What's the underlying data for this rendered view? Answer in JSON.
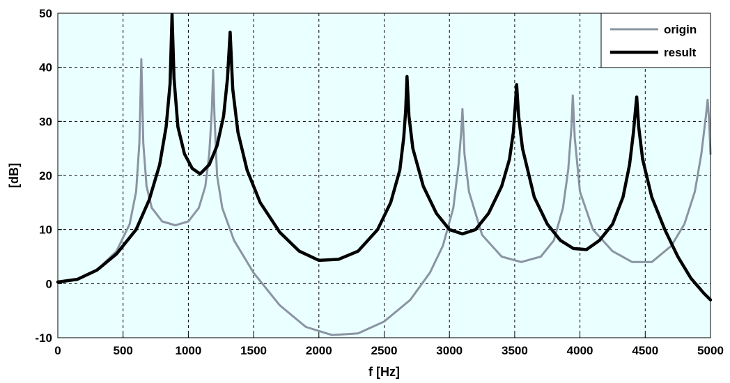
{
  "chart_data": {
    "type": "line",
    "xlabel": "f [Hz]",
    "ylabel": "[dB]",
    "xlim": [
      0,
      5000
    ],
    "ylim": [
      -10,
      50
    ],
    "xticks": [
      "0",
      "500",
      "1000",
      "1500",
      "2000",
      "2500",
      "3000",
      "3500",
      "4000",
      "4500",
      "5000"
    ],
    "yticks": [
      "-10",
      "0",
      "10",
      "20",
      "30",
      "40",
      "50"
    ],
    "grid": true,
    "legend_position": "top-right",
    "background_color": "#eaffff",
    "series": [
      {
        "name": "origin",
        "color": "#8a94a2",
        "points": [
          [
            0,
            0.3
          ],
          [
            150,
            0.8
          ],
          [
            300,
            2.5
          ],
          [
            450,
            6
          ],
          [
            550,
            11
          ],
          [
            600,
            17
          ],
          [
            625,
            26
          ],
          [
            640,
            41.5
          ],
          [
            655,
            26
          ],
          [
            680,
            18
          ],
          [
            720,
            14
          ],
          [
            800,
            11.5
          ],
          [
            900,
            10.8
          ],
          [
            1000,
            11.5
          ],
          [
            1080,
            14
          ],
          [
            1130,
            18
          ],
          [
            1160,
            24
          ],
          [
            1180,
            32
          ],
          [
            1190,
            39.5
          ],
          [
            1200,
            31
          ],
          [
            1220,
            20
          ],
          [
            1260,
            14
          ],
          [
            1350,
            8
          ],
          [
            1500,
            2
          ],
          [
            1700,
            -4
          ],
          [
            1900,
            -8
          ],
          [
            2100,
            -9.5
          ],
          [
            2300,
            -9.2
          ],
          [
            2500,
            -7
          ],
          [
            2700,
            -3
          ],
          [
            2850,
            2
          ],
          [
            2950,
            7
          ],
          [
            3030,
            14
          ],
          [
            3070,
            22
          ],
          [
            3090,
            28
          ],
          [
            3100,
            32.3
          ],
          [
            3115,
            24
          ],
          [
            3150,
            17
          ],
          [
            3250,
            9
          ],
          [
            3400,
            5
          ],
          [
            3550,
            4
          ],
          [
            3700,
            5
          ],
          [
            3800,
            8
          ],
          [
            3870,
            14
          ],
          [
            3910,
            21
          ],
          [
            3935,
            29
          ],
          [
            3945,
            34.8
          ],
          [
            3960,
            27
          ],
          [
            4000,
            17
          ],
          [
            4100,
            10
          ],
          [
            4250,
            6
          ],
          [
            4400,
            4
          ],
          [
            4550,
            4
          ],
          [
            4700,
            7
          ],
          [
            4800,
            11
          ],
          [
            4880,
            17
          ],
          [
            4930,
            24
          ],
          [
            4965,
            31
          ],
          [
            4978,
            34
          ],
          [
            4990,
            30
          ],
          [
            5000,
            24
          ]
        ]
      },
      {
        "name": "result",
        "color": "#000000",
        "points": [
          [
            0,
            0.3
          ],
          [
            150,
            0.8
          ],
          [
            300,
            2.5
          ],
          [
            450,
            5.5
          ],
          [
            600,
            10
          ],
          [
            700,
            15.5
          ],
          [
            780,
            22
          ],
          [
            830,
            29
          ],
          [
            860,
            37
          ],
          [
            875,
            49.8
          ],
          [
            890,
            38
          ],
          [
            920,
            29
          ],
          [
            970,
            24
          ],
          [
            1030,
            21.3
          ],
          [
            1090,
            20.3
          ],
          [
            1160,
            22
          ],
          [
            1220,
            25.5
          ],
          [
            1270,
            31
          ],
          [
            1300,
            38
          ],
          [
            1320,
            46.5
          ],
          [
            1340,
            36
          ],
          [
            1380,
            28
          ],
          [
            1450,
            21
          ],
          [
            1550,
            15
          ],
          [
            1700,
            9.5
          ],
          [
            1850,
            6
          ],
          [
            2000,
            4.3
          ],
          [
            2150,
            4.5
          ],
          [
            2300,
            6
          ],
          [
            2450,
            10
          ],
          [
            2550,
            15
          ],
          [
            2620,
            21
          ],
          [
            2650,
            27
          ],
          [
            2665,
            32
          ],
          [
            2675,
            38.3
          ],
          [
            2690,
            31
          ],
          [
            2720,
            25
          ],
          [
            2800,
            18
          ],
          [
            2900,
            13
          ],
          [
            3000,
            10
          ],
          [
            3100,
            9.2
          ],
          [
            3200,
            10
          ],
          [
            3300,
            13
          ],
          [
            3400,
            18
          ],
          [
            3460,
            23
          ],
          [
            3490,
            28
          ],
          [
            3505,
            33
          ],
          [
            3515,
            36.8
          ],
          [
            3530,
            31
          ],
          [
            3560,
            25
          ],
          [
            3650,
            16
          ],
          [
            3750,
            11
          ],
          [
            3850,
            8
          ],
          [
            3950,
            6.5
          ],
          [
            4050,
            6.3
          ],
          [
            4150,
            8
          ],
          [
            4250,
            11
          ],
          [
            4330,
            16
          ],
          [
            4380,
            22
          ],
          [
            4410,
            28
          ],
          [
            4425,
            32
          ],
          [
            4435,
            34.5
          ],
          [
            4450,
            29
          ],
          [
            4480,
            23
          ],
          [
            4550,
            16
          ],
          [
            4650,
            10
          ],
          [
            4750,
            5
          ],
          [
            4850,
            1
          ],
          [
            4950,
            -1.8
          ],
          [
            5000,
            -3
          ]
        ]
      }
    ]
  }
}
